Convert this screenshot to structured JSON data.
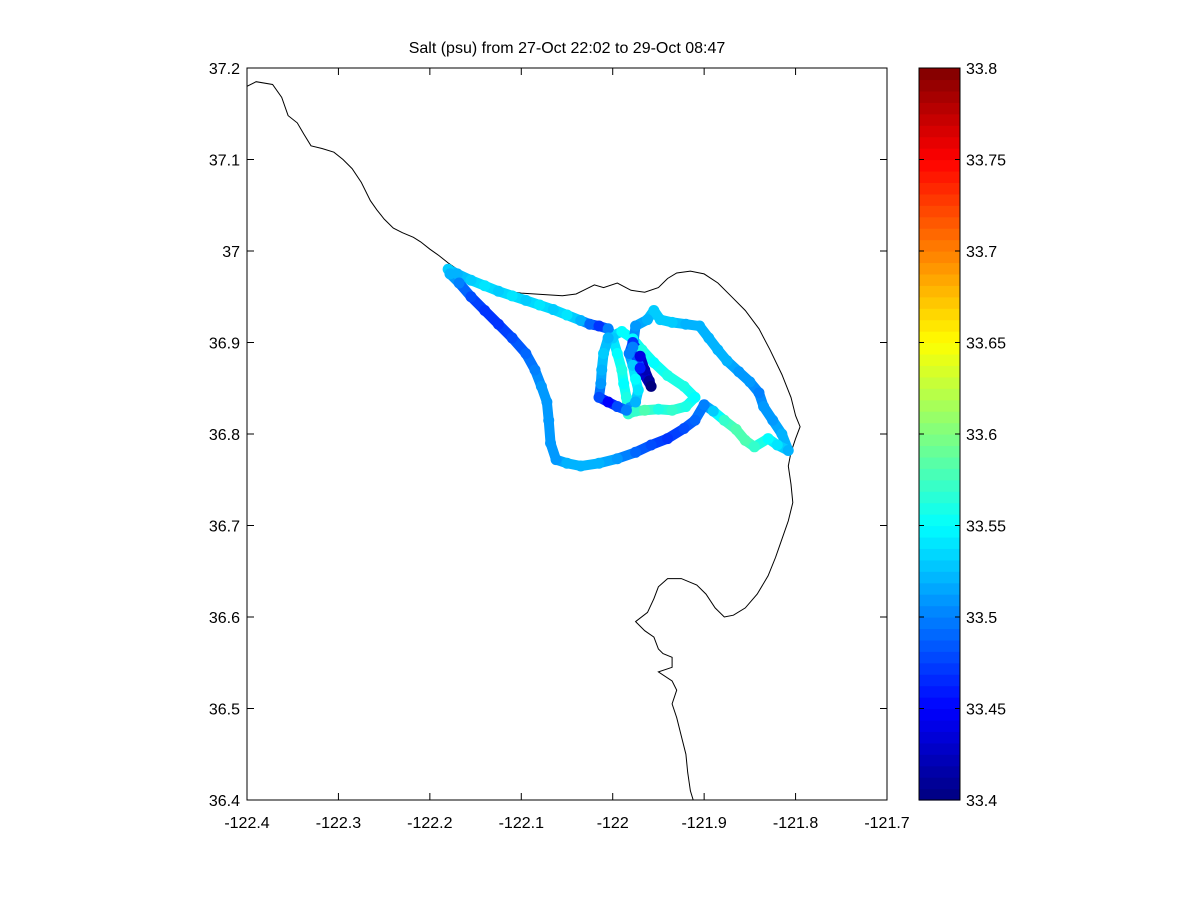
{
  "chart_data": {
    "type": "scatter",
    "title": "Salt (psu) from 27-Oct 22:02 to 29-Oct 08:47",
    "xlabel": "",
    "ylabel": "",
    "xlim": [
      -122.4,
      -121.7
    ],
    "ylim": [
      36.4,
      37.2
    ],
    "x_ticks": [
      -122.4,
      -122.3,
      -122.2,
      -122.1,
      -122,
      -121.9,
      -121.8,
      -121.7
    ],
    "x_tick_labels": [
      "-122.4",
      "-122.3",
      "-122.2",
      "-122.1",
      "-122",
      "-121.9",
      "-121.8",
      "-121.7"
    ],
    "y_ticks": [
      36.4,
      36.5,
      36.6,
      36.7,
      36.8,
      36.9,
      37,
      37.1,
      37.2
    ],
    "y_tick_labels": [
      "36.4",
      "36.5",
      "36.6",
      "36.7",
      "36.8",
      "36.9",
      "37",
      "37.1",
      "37.2"
    ],
    "grid": false,
    "legend": "none",
    "colormap": "jet",
    "colorbar": {
      "clim": [
        33.4,
        33.8
      ],
      "ticks": [
        33.4,
        33.45,
        33.5,
        33.55,
        33.6,
        33.65,
        33.7,
        33.75,
        33.8
      ],
      "tick_labels": [
        "33.4",
        "33.45",
        "33.5",
        "33.55",
        "33.6",
        "33.65",
        "33.7",
        "33.75",
        "33.8"
      ]
    },
    "coastline": [
      [
        -122.4,
        37.18
      ],
      [
        -122.39,
        37.185
      ],
      [
        -122.372,
        37.182
      ],
      [
        -122.362,
        37.168
      ],
      [
        -122.355,
        37.148
      ],
      [
        -122.345,
        37.14
      ],
      [
        -122.338,
        37.128
      ],
      [
        -122.33,
        37.115
      ],
      [
        -122.318,
        37.112
      ],
      [
        -122.305,
        37.108
      ],
      [
        -122.295,
        37.1
      ],
      [
        -122.285,
        37.09
      ],
      [
        -122.275,
        37.075
      ],
      [
        -122.265,
        37.055
      ],
      [
        -122.258,
        37.045
      ],
      [
        -122.25,
        37.035
      ],
      [
        -122.24,
        37.025
      ],
      [
        -122.23,
        37.02
      ],
      [
        -122.218,
        37.015
      ],
      [
        -122.21,
        37.01
      ],
      [
        -122.2,
        37.002
      ],
      [
        -122.19,
        36.995
      ],
      [
        -122.18,
        36.987
      ],
      [
        -122.17,
        36.98
      ],
      [
        -122.16,
        36.974
      ],
      [
        -122.15,
        36.969
      ],
      [
        -122.14,
        36.963
      ],
      [
        -122.13,
        36.96
      ],
      [
        -122.115,
        36.956
      ],
      [
        -122.1,
        36.954
      ],
      [
        -122.085,
        36.953
      ],
      [
        -122.07,
        36.952
      ],
      [
        -122.055,
        36.951
      ],
      [
        -122.04,
        36.953
      ],
      [
        -122.03,
        36.958
      ],
      [
        -122.02,
        36.963
      ],
      [
        -122.01,
        36.96
      ],
      [
        -121.995,
        36.965
      ],
      [
        -121.98,
        36.957
      ],
      [
        -121.965,
        36.955
      ],
      [
        -121.95,
        36.96
      ],
      [
        -121.94,
        36.97
      ],
      [
        -121.93,
        36.976
      ],
      [
        -121.915,
        36.978
      ],
      [
        -121.9,
        36.975
      ],
      [
        -121.885,
        36.965
      ],
      [
        -121.87,
        36.95
      ],
      [
        -121.855,
        36.935
      ],
      [
        -121.84,
        36.915
      ],
      [
        -121.828,
        36.892
      ],
      [
        -121.815,
        36.865
      ],
      [
        -121.805,
        36.84
      ],
      [
        -121.8,
        36.82
      ],
      [
        -121.795,
        36.808
      ],
      [
        -121.8,
        36.795
      ],
      [
        -121.805,
        36.78
      ],
      [
        -121.808,
        36.765
      ],
      [
        -121.805,
        36.745
      ],
      [
        -121.803,
        36.725
      ],
      [
        -121.808,
        36.705
      ],
      [
        -121.815,
        36.685
      ],
      [
        -121.822,
        36.665
      ],
      [
        -121.83,
        36.645
      ],
      [
        -121.842,
        36.625
      ],
      [
        -121.855,
        36.61
      ],
      [
        -121.868,
        36.602
      ],
      [
        -121.878,
        36.6
      ],
      [
        -121.888,
        36.61
      ],
      [
        -121.898,
        36.625
      ],
      [
        -121.908,
        36.635
      ],
      [
        -121.925,
        36.642
      ],
      [
        -121.94,
        36.642
      ],
      [
        -121.95,
        36.633
      ],
      [
        -121.955,
        36.62
      ],
      [
        -121.962,
        36.605
      ],
      [
        -121.975,
        36.595
      ],
      [
        -121.965,
        36.585
      ],
      [
        -121.955,
        36.578
      ],
      [
        -121.95,
        36.565
      ],
      [
        -121.945,
        36.56
      ],
      [
        -121.935,
        36.556
      ],
      [
        -121.935,
        36.545
      ],
      [
        -121.95,
        36.54
      ],
      [
        -121.935,
        36.53
      ],
      [
        -121.93,
        36.52
      ],
      [
        -121.935,
        36.505
      ],
      [
        -121.93,
        36.49
      ],
      [
        -121.925,
        36.47
      ],
      [
        -121.92,
        36.45
      ],
      [
        -121.918,
        36.43
      ],
      [
        -121.915,
        36.41
      ],
      [
        -121.912,
        36.4
      ]
    ],
    "track": [
      [
        -122.18,
        36.98,
        33.53
      ],
      [
        -122.17,
        36.975,
        33.52
      ],
      [
        -122.155,
        36.968,
        33.53
      ],
      [
        -122.14,
        36.962,
        33.54
      ],
      [
        -122.125,
        36.956,
        33.53
      ],
      [
        -122.11,
        36.951,
        33.54
      ],
      [
        -122.095,
        36.946,
        33.53
      ],
      [
        -122.08,
        36.941,
        33.54
      ],
      [
        -122.065,
        36.936,
        33.53
      ],
      [
        -122.05,
        36.93,
        33.54
      ],
      [
        -122.035,
        36.924,
        33.52
      ],
      [
        -122.025,
        36.92,
        33.49
      ],
      [
        -122.015,
        36.918,
        33.47
      ],
      [
        -122.005,
        36.915,
        33.5
      ],
      [
        -122.0,
        36.905,
        33.53
      ],
      [
        -121.995,
        36.888,
        33.55
      ],
      [
        -121.99,
        36.87,
        33.56
      ],
      [
        -121.988,
        36.855,
        33.55
      ],
      [
        -121.985,
        36.84,
        33.56
      ],
      [
        -121.983,
        36.822,
        33.57
      ],
      [
        -121.975,
        36.825,
        33.57
      ],
      [
        -121.965,
        36.826,
        33.58
      ],
      [
        -121.95,
        36.827,
        33.56
      ],
      [
        -121.935,
        36.826,
        33.57
      ],
      [
        -121.92,
        36.83,
        33.56
      ],
      [
        -121.91,
        36.84,
        33.55
      ],
      [
        -121.922,
        36.852,
        33.56
      ],
      [
        -121.94,
        36.864,
        33.56
      ],
      [
        -121.955,
        36.878,
        33.55
      ],
      [
        -121.968,
        36.892,
        33.56
      ],
      [
        -121.978,
        36.904,
        33.55
      ],
      [
        -121.99,
        36.912,
        33.55
      ],
      [
        -122.005,
        36.905,
        33.52
      ],
      [
        -122.01,
        36.888,
        33.53
      ],
      [
        -122.012,
        36.87,
        33.52
      ],
      [
        -122.013,
        36.855,
        33.51
      ],
      [
        -122.015,
        36.84,
        33.48
      ],
      [
        -122.005,
        36.835,
        33.45
      ],
      [
        -121.995,
        36.83,
        33.48
      ],
      [
        -121.985,
        36.826,
        33.5
      ],
      [
        -121.975,
        36.835,
        33.52
      ],
      [
        -121.972,
        36.848,
        33.54
      ],
      [
        -121.975,
        36.86,
        33.55
      ],
      [
        -121.978,
        36.875,
        33.53
      ],
      [
        -121.982,
        36.888,
        33.5
      ],
      [
        -121.978,
        36.9,
        33.47
      ],
      [
        -121.97,
        36.885,
        33.44
      ],
      [
        -121.965,
        36.87,
        33.42
      ],
      [
        -121.96,
        36.858,
        33.41
      ],
      [
        -121.958,
        36.852,
        33.4
      ],
      [
        -121.97,
        36.872,
        33.46
      ],
      [
        -121.978,
        36.895,
        33.5
      ],
      [
        -121.975,
        36.918,
        33.51
      ],
      [
        -121.962,
        36.925,
        33.52
      ],
      [
        -121.955,
        36.935,
        33.53
      ],
      [
        -121.948,
        36.925,
        33.53
      ],
      [
        -121.935,
        36.922,
        33.53
      ],
      [
        -121.92,
        36.92,
        33.52
      ],
      [
        -121.905,
        36.918,
        33.52
      ],
      [
        -121.895,
        36.905,
        33.52
      ],
      [
        -121.885,
        36.892,
        33.52
      ],
      [
        -121.875,
        36.88,
        33.52
      ],
      [
        -121.862,
        36.868,
        33.51
      ],
      [
        -121.85,
        36.857,
        33.51
      ],
      [
        -121.84,
        36.845,
        33.5
      ],
      [
        -121.835,
        36.83,
        33.51
      ],
      [
        -121.825,
        36.815,
        33.51
      ],
      [
        -121.815,
        36.8,
        33.52
      ],
      [
        -121.808,
        36.782,
        33.52
      ],
      [
        -121.82,
        36.788,
        33.54
      ],
      [
        -121.83,
        36.795,
        33.55
      ],
      [
        -121.845,
        36.786,
        33.57
      ],
      [
        -121.855,
        36.793,
        33.58
      ],
      [
        -121.865,
        36.805,
        33.58
      ],
      [
        -121.878,
        36.815,
        33.57
      ],
      [
        -121.89,
        36.825,
        33.53
      ],
      [
        -121.9,
        36.832,
        33.5
      ],
      [
        -121.91,
        36.815,
        33.49
      ],
      [
        -121.922,
        36.806,
        33.48
      ],
      [
        -121.94,
        36.795,
        33.47
      ],
      [
        -121.958,
        36.788,
        33.48
      ],
      [
        -121.975,
        36.78,
        33.49
      ],
      [
        -121.995,
        36.773,
        33.51
      ],
      [
        -122.015,
        36.768,
        33.52
      ],
      [
        -122.035,
        36.765,
        33.52
      ],
      [
        -122.05,
        36.768,
        33.52
      ],
      [
        -122.062,
        36.772,
        33.51
      ],
      [
        -122.068,
        36.79,
        33.51
      ],
      [
        -122.07,
        36.815,
        33.51
      ],
      [
        -122.072,
        36.835,
        33.51
      ],
      [
        -122.078,
        36.852,
        33.51
      ],
      [
        -122.085,
        36.87,
        33.5
      ],
      [
        -122.095,
        36.888,
        33.49
      ],
      [
        -122.11,
        36.905,
        33.48
      ],
      [
        -122.125,
        36.92,
        33.47
      ],
      [
        -122.14,
        36.935,
        33.47
      ],
      [
        -122.155,
        36.95,
        33.48
      ],
      [
        -122.168,
        36.965,
        33.5
      ],
      [
        -122.178,
        36.975,
        33.52
      ]
    ]
  }
}
